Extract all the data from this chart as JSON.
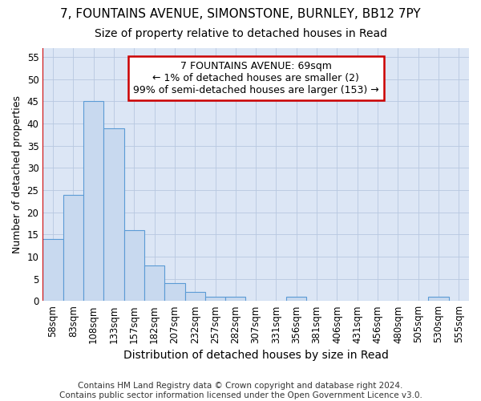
{
  "title1": "7, FOUNTAINS AVENUE, SIMONSTONE, BURNLEY, BB12 7PY",
  "title2": "Size of property relative to detached houses in Read",
  "xlabel": "Distribution of detached houses by size in Read",
  "ylabel": "Number of detached properties",
  "categories": [
    "58sqm",
    "83sqm",
    "108sqm",
    "133sqm",
    "157sqm",
    "182sqm",
    "207sqm",
    "232sqm",
    "257sqm",
    "282sqm",
    "307sqm",
    "331sqm",
    "356sqm",
    "381sqm",
    "406sqm",
    "431sqm",
    "456sqm",
    "480sqm",
    "505sqm",
    "530sqm",
    "555sqm"
  ],
  "values": [
    14,
    24,
    45,
    39,
    16,
    8,
    4,
    2,
    1,
    1,
    0,
    0,
    1,
    0,
    0,
    0,
    0,
    0,
    0,
    1,
    0
  ],
  "bar_color": "#c8d9ef",
  "bar_edge_color": "#5b9bd5",
  "grid_color": "#b8c8e0",
  "background_color": "#dce6f5",
  "annotation_text": "7 FOUNTAINS AVENUE: 69sqm\n← 1% of detached houses are smaller (2)\n99% of semi-detached houses are larger (153) →",
  "annotation_box_color": "white",
  "annotation_box_edge_color": "#cc0000",
  "vline_color": "#cc0000",
  "ylim": [
    0,
    57
  ],
  "yticks": [
    0,
    5,
    10,
    15,
    20,
    25,
    30,
    35,
    40,
    45,
    50,
    55
  ],
  "footnote": "Contains HM Land Registry data © Crown copyright and database right 2024.\nContains public sector information licensed under the Open Government Licence v3.0.",
  "title1_fontsize": 11,
  "title2_fontsize": 10,
  "xlabel_fontsize": 10,
  "ylabel_fontsize": 9,
  "tick_fontsize": 8.5,
  "annotation_fontsize": 9,
  "footnote_fontsize": 7.5
}
